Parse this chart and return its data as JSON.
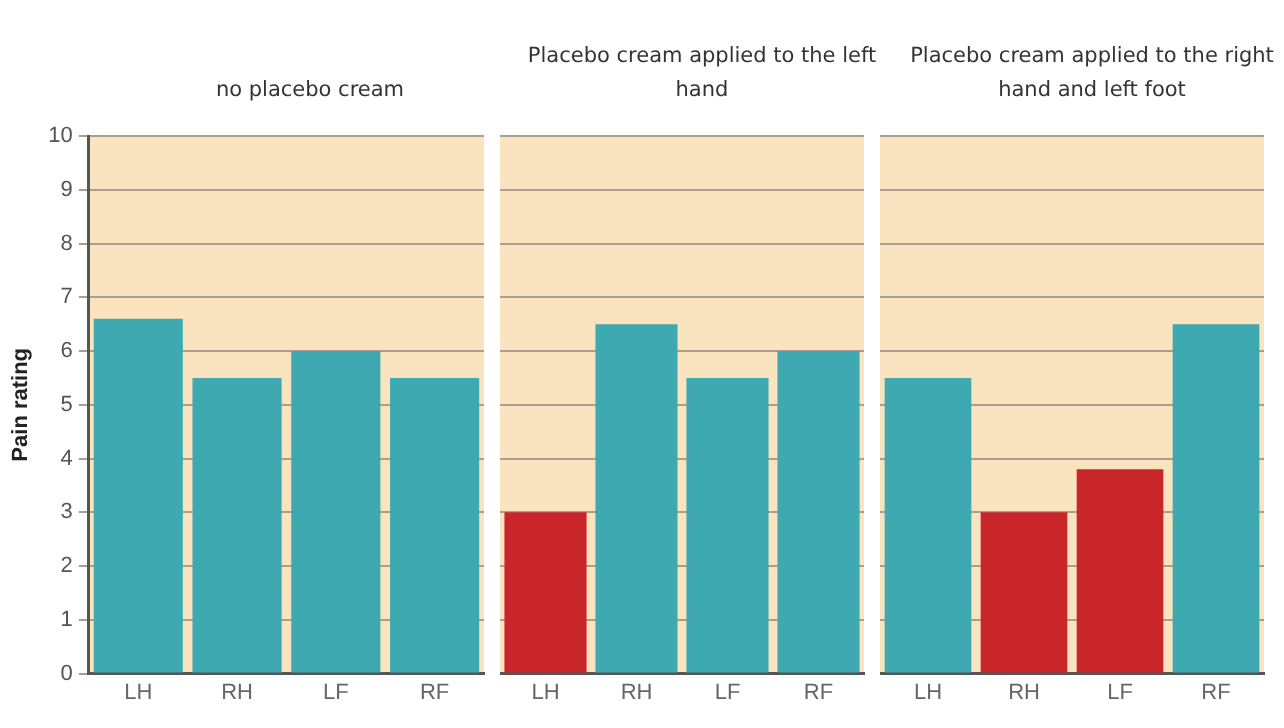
{
  "chart_data": [
    {
      "type": "bar",
      "title": "no placebo cream",
      "ylabel": "Pain rating",
      "categories": [
        "LH",
        "RH",
        "LF",
        "RF"
      ],
      "values": [
        6.6,
        5.5,
        6.0,
        5.5
      ],
      "colors": [
        "#3fa9b1",
        "#3fa9b1",
        "#3fa9b1",
        "#3fa9b1"
      ],
      "ylim": [
        0,
        10
      ],
      "yticks": [
        0,
        1,
        2,
        3,
        4,
        5,
        6,
        7,
        8,
        9,
        10
      ],
      "grid": "y",
      "legend": false,
      "bands": [
        {
          "axis": "y",
          "from": 0,
          "to": 10,
          "color": "#fae4bf"
        }
      ]
    },
    {
      "type": "bar",
      "title": "Placebo cream applied to the left hand",
      "categories": [
        "LH",
        "RH",
        "LF",
        "RF"
      ],
      "values": [
        3.0,
        6.5,
        5.5,
        6.0
      ],
      "colors": [
        "#c9262c",
        "#3fa9b1",
        "#3fa9b1",
        "#3fa9b1"
      ],
      "ylim": [
        0,
        10
      ],
      "yticks": [
        0,
        1,
        2,
        3,
        4,
        5,
        6,
        7,
        8,
        9,
        10
      ],
      "grid": "y",
      "legend": false,
      "tick_labels": "x",
      "bands": [
        {
          "axis": "y",
          "from": 0,
          "to": 10,
          "color": "#fae4bf"
        }
      ]
    },
    {
      "type": "bar",
      "title": "Placebo cream applied to the right hand and left foot",
      "categories": [
        "LH",
        "RH",
        "LF",
        "RF"
      ],
      "values": [
        5.5,
        3.0,
        3.8,
        6.5
      ],
      "colors": [
        "#3fa9b1",
        "#c9262c",
        "#c9262c",
        "#3fa9b1"
      ],
      "ylim": [
        0,
        10
      ],
      "yticks": [
        0,
        1,
        2,
        3,
        4,
        5,
        6,
        7,
        8,
        9,
        10
      ],
      "grid": "y",
      "legend": false,
      "tick_labels": "x",
      "bands": [
        {
          "axis": "y",
          "from": 0,
          "to": 10,
          "color": "#fae4bf"
        }
      ]
    }
  ]
}
